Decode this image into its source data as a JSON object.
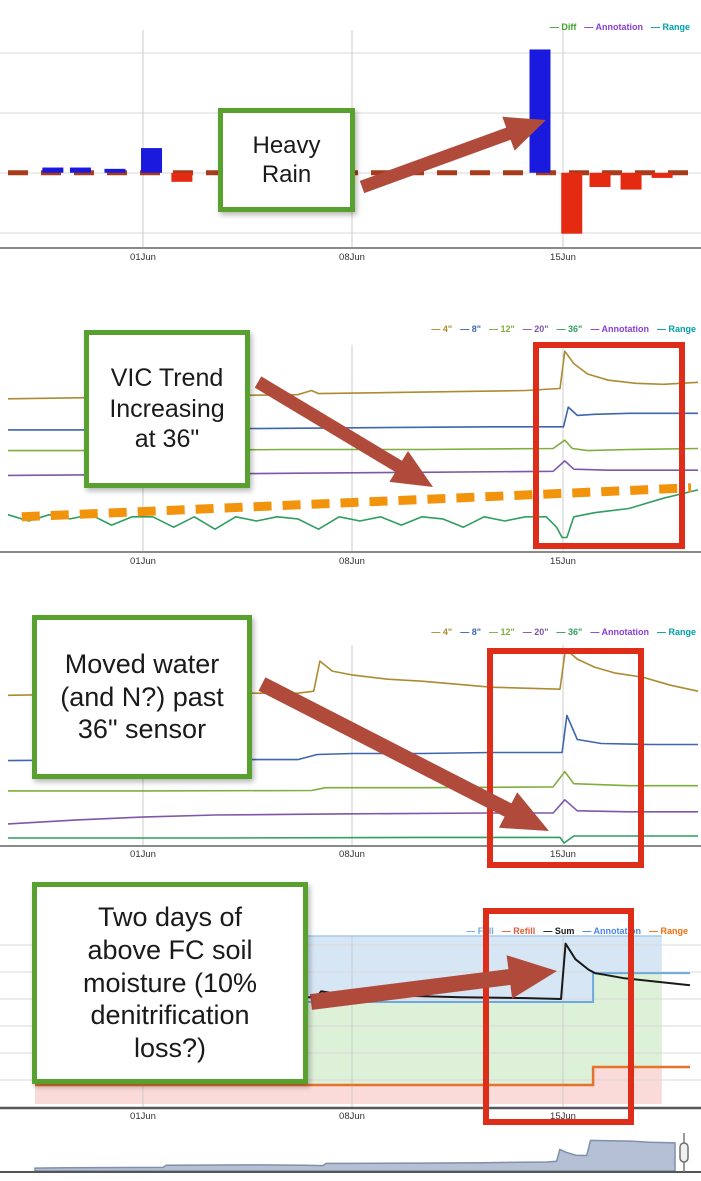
{
  "x_axis": {
    "tick_labels": [
      "01Jun",
      "08Jun",
      "15Jun"
    ]
  },
  "chart_data": [
    {
      "id": "daily-diff-bars",
      "type": "bar",
      "note": "no y-axis value labels visible; values in relative units",
      "legend": [
        {
          "label": "Diff",
          "color": "#3fa32f"
        },
        {
          "label": "Annotation",
          "color": "#8a3fd4"
        },
        {
          "label": "Range",
          "color": "#00a0a8"
        }
      ],
      "ylim": [
        -58,
        110
      ],
      "zero_dash_color": "#a63c1c",
      "bar_colors": {
        "pos": "#1a1adf",
        "neg": "#e42a10"
      },
      "bars": [
        {
          "x": 0.065,
          "v": 4
        },
        {
          "x": 0.105,
          "v": 4
        },
        {
          "x": 0.155,
          "v": 3
        },
        {
          "x": 0.208,
          "v": 19
        },
        {
          "x": 0.252,
          "v": -7
        },
        {
          "x": 0.771,
          "v": 95
        },
        {
          "x": 0.817,
          "v": -47
        },
        {
          "x": 0.858,
          "v": -11
        },
        {
          "x": 0.903,
          "v": -13
        },
        {
          "x": 0.948,
          "v": -4
        }
      ]
    },
    {
      "id": "vic-trend-depth-lines",
      "type": "line",
      "legend": [
        {
          "label": "4\"",
          "color": "#ad8b33"
        },
        {
          "label": "8\"",
          "color": "#3e66ad"
        },
        {
          "label": "12\"",
          "color": "#7fae3d"
        },
        {
          "label": "20\"",
          "color": "#7e57a8"
        },
        {
          "label": "36\"",
          "color": "#2f9e5f"
        },
        {
          "label": "Annotation",
          "color": "#8a3fd4"
        },
        {
          "label": "Range",
          "color": "#00a0a8"
        }
      ],
      "series": [
        {
          "name": "4\"",
          "color": "#ad8b33",
          "points": [
            [
              0,
              74
            ],
            [
              0.1,
              74.5
            ],
            [
              0.2,
              75
            ],
            [
              0.3,
              75.5
            ],
            [
              0.42,
              76
            ],
            [
              0.44,
              78
            ],
            [
              0.45,
              76.5
            ],
            [
              0.55,
              77
            ],
            [
              0.65,
              77.5
            ],
            [
              0.75,
              78
            ],
            [
              0.8,
              79
            ],
            [
              0.807,
              97
            ],
            [
              0.82,
              91
            ],
            [
              0.84,
              86
            ],
            [
              0.87,
              83
            ],
            [
              0.91,
              81.5
            ],
            [
              0.95,
              81
            ],
            [
              1,
              82
            ]
          ]
        },
        {
          "name": "8\"",
          "color": "#3e66ad",
          "points": [
            [
              0,
              59
            ],
            [
              0.15,
              59
            ],
            [
              0.3,
              59.5
            ],
            [
              0.5,
              60
            ],
            [
              0.7,
              60.5
            ],
            [
              0.805,
              60.5
            ],
            [
              0.812,
              70
            ],
            [
              0.825,
              66
            ],
            [
              0.85,
              66.5
            ],
            [
              0.9,
              67
            ],
            [
              1,
              67
            ]
          ]
        },
        {
          "name": "12\"",
          "color": "#7fae3d",
          "points": [
            [
              0,
              49
            ],
            [
              0.2,
              49
            ],
            [
              0.4,
              49.5
            ],
            [
              0.6,
              49.5
            ],
            [
              0.79,
              50
            ],
            [
              0.807,
              54
            ],
            [
              0.818,
              50
            ],
            [
              0.84,
              49
            ],
            [
              0.9,
              49.5
            ],
            [
              1,
              50
            ]
          ]
        },
        {
          "name": "20\"",
          "color": "#7e57a8",
          "points": [
            [
              0,
              37
            ],
            [
              0.2,
              37.5
            ],
            [
              0.4,
              38
            ],
            [
              0.6,
              38.5
            ],
            [
              0.79,
              39
            ],
            [
              0.807,
              44
            ],
            [
              0.82,
              40
            ],
            [
              0.87,
              39.5
            ],
            [
              1,
              39.5
            ]
          ]
        },
        {
          "name": "36\"",
          "color": "#2f9e5f",
          "points": [
            [
              0,
              18
            ],
            [
              0.03,
              15
            ],
            [
              0.06,
              18
            ],
            [
              0.09,
              16
            ],
            [
              0.12,
              18
            ],
            [
              0.15,
              13
            ],
            [
              0.18,
              17
            ],
            [
              0.21,
              17
            ],
            [
              0.24,
              12
            ],
            [
              0.27,
              17
            ],
            [
              0.3,
              11
            ],
            [
              0.33,
              17
            ],
            [
              0.36,
              15
            ],
            [
              0.39,
              17
            ],
            [
              0.42,
              16
            ],
            [
              0.45,
              11
            ],
            [
              0.48,
              17
            ],
            [
              0.51,
              15
            ],
            [
              0.54,
              17
            ],
            [
              0.57,
              13
            ],
            [
              0.6,
              17
            ],
            [
              0.63,
              16
            ],
            [
              0.66,
              12
            ],
            [
              0.69,
              17
            ],
            [
              0.72,
              15
            ],
            [
              0.75,
              17
            ],
            [
              0.78,
              17
            ],
            [
              0.795,
              12
            ],
            [
              0.803,
              7
            ],
            [
              0.81,
              7
            ],
            [
              0.82,
              17
            ],
            [
              0.85,
              19
            ],
            [
              0.9,
              21
            ],
            [
              0.95,
              26
            ],
            [
              1,
              30
            ]
          ]
        }
      ],
      "trend_line": {
        "name": "VIC trend (hand-drawn)",
        "color": "#f2930c",
        "dashed": true,
        "points": [
          [
            0.02,
            17
          ],
          [
            0.99,
            31
          ]
        ]
      }
    },
    {
      "id": "depth-lines",
      "type": "line",
      "legend": [
        {
          "label": "4\"",
          "color": "#ad8b33"
        },
        {
          "label": "8\"",
          "color": "#3e66ad"
        },
        {
          "label": "12\"",
          "color": "#7fae3d"
        },
        {
          "label": "20\"",
          "color": "#7e57a8"
        },
        {
          "label": "36\"",
          "color": "#2f9e5f"
        },
        {
          "label": "Annotation",
          "color": "#8a3fd4"
        },
        {
          "label": "Range",
          "color": "#00a0a8"
        }
      ],
      "series": [
        {
          "name": "4\"",
          "color": "#ad8b33",
          "points": [
            [
              0,
              75
            ],
            [
              0.1,
              75.5
            ],
            [
              0.2,
              76
            ],
            [
              0.3,
              76
            ],
            [
              0.42,
              76
            ],
            [
              0.443,
              77
            ],
            [
              0.452,
              92
            ],
            [
              0.47,
              87
            ],
            [
              0.5,
              85
            ],
            [
              0.55,
              83
            ],
            [
              0.6,
              82
            ],
            [
              0.7,
              79
            ],
            [
              0.75,
              78.5
            ],
            [
              0.8,
              78
            ],
            [
              0.808,
              98
            ],
            [
              0.825,
              93
            ],
            [
              0.85,
              89
            ],
            [
              0.88,
              86
            ],
            [
              0.92,
              84
            ],
            [
              0.96,
              80
            ],
            [
              1,
              77
            ]
          ]
        },
        {
          "name": "8\"",
          "color": "#3e66ad",
          "points": [
            [
              0,
              42.5
            ],
            [
              0.2,
              43
            ],
            [
              0.42,
              43
            ],
            [
              0.448,
              45.5
            ],
            [
              0.5,
              46
            ],
            [
              0.6,
              46
            ],
            [
              0.7,
              46.5
            ],
            [
              0.803,
              46.5
            ],
            [
              0.81,
              65
            ],
            [
              0.825,
              53
            ],
            [
              0.86,
              51
            ],
            [
              0.93,
              50.5
            ],
            [
              1,
              50.5
            ]
          ]
        },
        {
          "name": "12\"",
          "color": "#7fae3d",
          "points": [
            [
              0,
              27.4
            ],
            [
              0.2,
              27.4
            ],
            [
              0.44,
              27.6
            ],
            [
              0.46,
              29
            ],
            [
              0.6,
              29
            ],
            [
              0.79,
              29.4
            ],
            [
              0.807,
              37
            ],
            [
              0.82,
              31
            ],
            [
              0.9,
              30
            ],
            [
              1,
              30
            ]
          ]
        },
        {
          "name": "20\"",
          "color": "#7e57a8",
          "points": [
            [
              0,
              11
            ],
            [
              0.1,
              13
            ],
            [
              0.2,
              14.5
            ],
            [
              0.3,
              15.4
            ],
            [
              0.5,
              16
            ],
            [
              0.7,
              16.4
            ],
            [
              0.79,
              16.4
            ],
            [
              0.807,
              23
            ],
            [
              0.825,
              17.5
            ],
            [
              0.9,
              17
            ],
            [
              1,
              17
            ]
          ]
        },
        {
          "name": "36\"",
          "color": "#2f9e5f",
          "points": [
            [
              0,
              4
            ],
            [
              0.3,
              4
            ],
            [
              0.6,
              4.3
            ],
            [
              0.8,
              4.3
            ],
            [
              0.806,
              1.5
            ],
            [
              0.82,
              5
            ],
            [
              0.9,
              5
            ],
            [
              1,
              5
            ]
          ]
        }
      ]
    },
    {
      "id": "soil-moisture-sum",
      "type": "line-with-bands",
      "legend": [
        {
          "label": "Full",
          "color": "#6fa8dc"
        },
        {
          "label": "Refill",
          "color": "#e05d3a"
        },
        {
          "label": "Sum",
          "color": "#1a1a1a"
        },
        {
          "label": "Annotation",
          "color": "#4a86e8"
        },
        {
          "label": "Range",
          "color": "#f26d0c"
        }
      ],
      "bands": {
        "full_band_color": "#d7e6f5",
        "ok_band_color": "#ddf0d8",
        "refill_band_color": "#fadbd9",
        "band_top_edge_color": "#aac9e9",
        "band_end_frac": 0.957
      },
      "series": [
        {
          "name": "Full",
          "color": "#6fa8dc",
          "step": true,
          "points": [
            [
              0,
              61.3
            ],
            [
              0.852,
              61.3
            ],
            [
              0.852,
              78
            ],
            [
              1,
              78
            ]
          ]
        },
        {
          "name": "Refill",
          "color": "#e8722c",
          "step": true,
          "points": [
            [
              0,
              13.3
            ],
            [
              0.852,
              13.3
            ],
            [
              0.852,
              23.7
            ],
            [
              1,
              23.7
            ]
          ]
        },
        {
          "name": "Sum",
          "color": "#1a1a1a",
          "points": [
            [
              0.417,
              64
            ],
            [
              0.43,
              64
            ],
            [
              0.437,
              67.5
            ],
            [
              0.46,
              66
            ],
            [
              0.55,
              65
            ],
            [
              0.65,
              64
            ],
            [
              0.75,
              63.5
            ],
            [
              0.803,
              63
            ],
            [
              0.81,
              95
            ],
            [
              0.825,
              86
            ],
            [
              0.845,
              80
            ],
            [
              0.855,
              78
            ],
            [
              0.87,
              77
            ],
            [
              0.9,
              75
            ],
            [
              0.95,
              73
            ],
            [
              1,
              71
            ]
          ]
        }
      ]
    },
    {
      "id": "range-selector",
      "type": "area",
      "fill_color": "#b6c0d4",
      "edge_color": "#7f90aa",
      "points": [
        [
          0,
          8
        ],
        [
          0.05,
          9
        ],
        [
          0.2,
          10
        ],
        [
          0.205,
          16
        ],
        [
          0.35,
          17
        ],
        [
          0.42,
          16
        ],
        [
          0.45,
          15
        ],
        [
          0.455,
          21
        ],
        [
          0.5,
          21
        ],
        [
          0.6,
          22
        ],
        [
          0.7,
          23
        ],
        [
          0.8,
          25
        ],
        [
          0.815,
          27
        ],
        [
          0.82,
          60
        ],
        [
          0.83,
          52
        ],
        [
          0.845,
          44
        ],
        [
          0.862,
          43
        ],
        [
          0.868,
          85
        ],
        [
          0.93,
          83
        ],
        [
          0.96,
          80
        ],
        [
          1,
          78
        ]
      ]
    }
  ],
  "annotations": {
    "boxes": [
      {
        "text": "Heavy\nRain"
      },
      {
        "text": "VIC Trend\nIncreasing\nat 36\""
      },
      {
        "text": "Moved water\n(and N?) past\n36\" sensor"
      },
      {
        "text": "Two days of\nabove FC soil\nmoisture (10%\ndenitrification\nloss?)"
      }
    ],
    "box_border_color": "#58a02f",
    "highlight_rect_color": "#de2d18",
    "arrow_color": "#b04b3c",
    "trend_dash_color": "#f2930c"
  }
}
